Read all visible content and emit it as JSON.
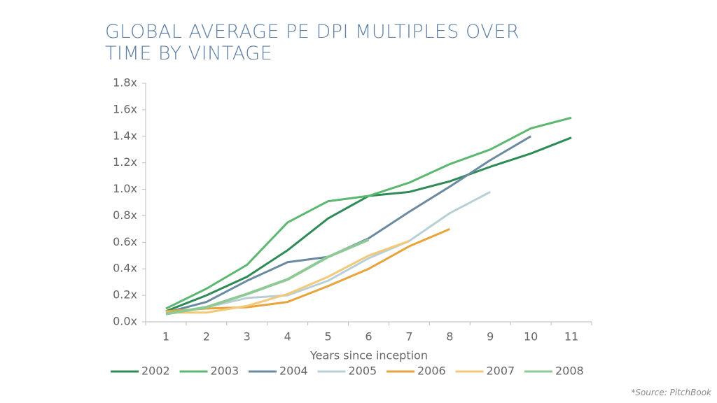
{
  "chart_data": {
    "type": "line",
    "title": "GLOBAL AVERAGE PE DPI MULTIPLES OVER TIME BY VINTAGE",
    "x_label": "Years since inception",
    "source": "*Source: PitchBook",
    "categories": [
      "1",
      "2",
      "3",
      "4",
      "5",
      "6",
      "7",
      "8",
      "9",
      "10",
      "11"
    ],
    "ylim": [
      0,
      1.8
    ],
    "yticks": [
      {
        "value": 0,
        "label": "0.0x"
      },
      {
        "value": 0.2,
        "label": "0.2x"
      },
      {
        "value": 0.4,
        "label": "0.4x"
      },
      {
        "value": 0.6,
        "label": "0.6x"
      },
      {
        "value": 0.8,
        "label": "0.8x"
      },
      {
        "value": 1.0,
        "label": "1.0x"
      },
      {
        "value": 1.2,
        "label": "1.2x"
      },
      {
        "value": 1.4,
        "label": "1.4x"
      },
      {
        "value": 1.6,
        "label": "1.6x"
      },
      {
        "value": 1.8,
        "label": "1.8x"
      }
    ],
    "legend": "bottom",
    "series": [
      {
        "name": "2002",
        "color": "#2e8b57",
        "values": [
          0.08,
          0.2,
          0.34,
          0.54,
          0.78,
          0.95,
          0.98,
          1.06,
          1.17,
          1.27,
          1.39
        ]
      },
      {
        "name": "2003",
        "color": "#5cb870",
        "values": [
          0.1,
          0.25,
          0.43,
          0.75,
          0.91,
          0.95,
          1.05,
          1.19,
          1.3,
          1.46,
          1.54
        ]
      },
      {
        "name": "2004",
        "color": "#6a8aa0",
        "values": [
          0.07,
          0.15,
          0.31,
          0.45,
          0.49,
          0.63,
          0.83,
          1.02,
          1.22,
          1.4,
          null
        ]
      },
      {
        "name": "2005",
        "color": "#b9cfd8",
        "values": [
          0.06,
          0.11,
          0.18,
          0.2,
          0.31,
          0.48,
          0.61,
          0.82,
          0.98,
          null,
          null
        ]
      },
      {
        "name": "2006",
        "color": "#e8a33a",
        "values": [
          0.08,
          0.1,
          0.11,
          0.15,
          0.27,
          0.4,
          0.57,
          0.7,
          null,
          null,
          null
        ]
      },
      {
        "name": "2007",
        "color": "#f2c879",
        "values": [
          0.07,
          0.07,
          0.12,
          0.21,
          0.34,
          0.5,
          0.61,
          null,
          null,
          null,
          null
        ]
      },
      {
        "name": "2008",
        "color": "#8fca96",
        "values": [
          0.06,
          0.11,
          0.21,
          0.32,
          0.49,
          0.62,
          null,
          null,
          null,
          null,
          null
        ]
      }
    ]
  }
}
